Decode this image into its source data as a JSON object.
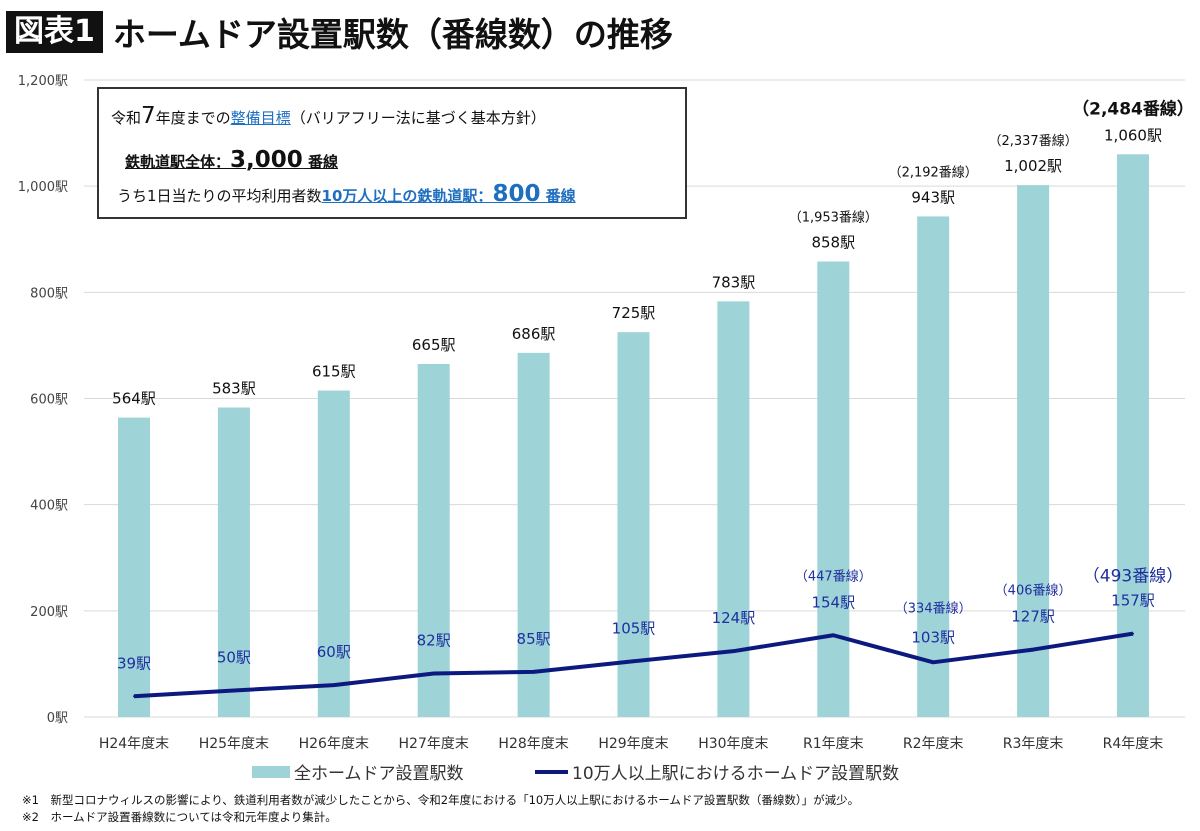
{
  "header": {
    "badge": "図表1",
    "title": "ホームドア設置駅数（番線数）の推移"
  },
  "box": {
    "line1_pre": "令和",
    "line1_num": "7",
    "line1_mid": "年度までの",
    "line1_link": "整備目標",
    "line1_post": "（バリアフリー法に基づく基本方針）",
    "line2_label": "鉄軌道駅全体：",
    "line2_value": "3,000",
    "line2_unit": " 番線",
    "line3_pre": "うち1日当たりの平均利用者数",
    "line3_link": "10万人以上の鉄軌道駅：",
    "line3_value": "800",
    "line3_unit": " 番線"
  },
  "notes": [
    "※1　新型コロナウィルスの影響により、鉄道利用者数が減少したことから、令和2年度における「10万人以上駅におけるホームドア設置駅数（番線数）」が減少。",
    "※2　ホームドア設置番線数については令和元年度より集計。"
  ],
  "colors": {
    "bar": "#9ed3d7",
    "line": "#0c1a80",
    "line_label": "#1f2f9f"
  },
  "chart_data": {
    "type": "bar+line",
    "categories": [
      "H24年度末",
      "H25年度末",
      "H26年度末",
      "H27年度末",
      "H28年度末",
      "H29年度末",
      "H30年度末",
      "R1年度末",
      "R2年度末",
      "R3年度末",
      "R4年度末"
    ],
    "ylim": [
      0,
      1200
    ],
    "yticks": [
      0,
      200,
      400,
      600,
      800,
      1000,
      1200
    ],
    "ytick_labels": [
      "0駅",
      "200駅",
      "400駅",
      "600駅",
      "800駅",
      "1,000駅",
      "1,200駅"
    ],
    "grid": true,
    "legend_position": "bottom",
    "series": [
      {
        "name": "全ホームドア設置駅数",
        "type": "bar",
        "values": [
          564,
          583,
          615,
          665,
          686,
          725,
          783,
          858,
          943,
          1002,
          1060
        ],
        "labels": [
          "564駅",
          "583駅",
          "615駅",
          "665駅",
          "686駅",
          "725駅",
          "783駅",
          "858駅",
          "943駅",
          "1,002駅",
          "1,060駅"
        ],
        "sublabels": [
          null,
          null,
          null,
          null,
          null,
          null,
          null,
          "（1,953番線）",
          "（2,192番線）",
          "（2,337番線）",
          "（2,484番線）"
        ]
      },
      {
        "name": "10万人以上駅におけるホームドア設置駅数",
        "type": "line",
        "values": [
          39,
          50,
          60,
          82,
          85,
          105,
          124,
          154,
          103,
          127,
          157
        ],
        "labels": [
          "39駅",
          "50駅",
          "60駅",
          "82駅",
          "85駅",
          "105駅",
          "124駅",
          "154駅",
          "103駅",
          "127駅",
          "157駅"
        ],
        "sublabels": [
          null,
          null,
          null,
          null,
          null,
          null,
          null,
          "（447番線）",
          "（334番線）",
          "（406番線）",
          "（493番線）"
        ]
      }
    ]
  }
}
